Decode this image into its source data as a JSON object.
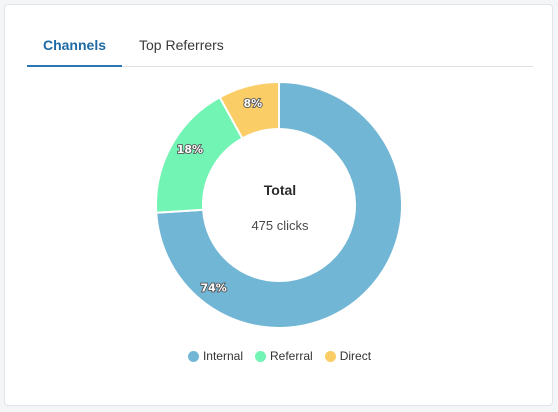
{
  "tabs": [
    {
      "label": "Channels",
      "active": true
    },
    {
      "label": "Top Referrers",
      "active": false
    }
  ],
  "center": {
    "title": "Total",
    "value": "475 clicks"
  },
  "chart_data": {
    "type": "pie",
    "donut": true,
    "categories": [
      "Internal",
      "Referral",
      "Direct"
    ],
    "values": [
      74,
      18,
      8
    ],
    "labels": [
      "74%",
      "18%",
      "8%"
    ],
    "colors": [
      "#72b6d5",
      "#72f4b4",
      "#fbcd66"
    ],
    "legend": "bottom"
  }
}
